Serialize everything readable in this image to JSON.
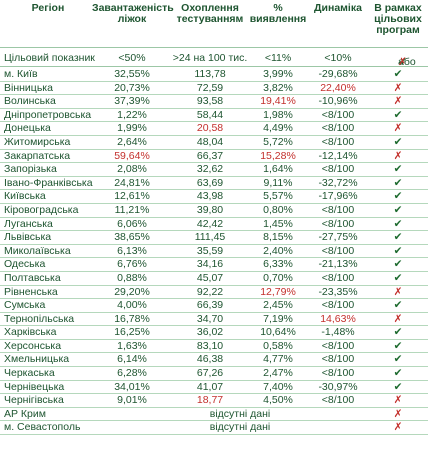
{
  "headers": {
    "region": "Регіон",
    "beds_line1": "Завантаженість",
    "beds_line2": "ліжок",
    "test_line1": "Охоплення",
    "test_line2": "тестуванням",
    "detect_line1": "%",
    "detect_line2": "виявлення",
    "dynamics": "Динаміка",
    "prog_line1": "В рамках",
    "prog_line2": "цільових",
    "prog_line3": "програм"
  },
  "target": {
    "label": "Цільовий показник",
    "beds": "<50%",
    "test": ">24 на 100 тис.",
    "detect": "<11%",
    "dyn": "<10%",
    "check": "✔",
    "or": "або",
    "cross": "✗"
  },
  "colors": {
    "text_green": "#1e5530",
    "red": "#c3302c",
    "check_green": "#1e6b2f",
    "line": "#b5d8bc"
  },
  "rows": [
    {
      "region": "м. Київ",
      "beds": "32,55%",
      "test": "113,78",
      "detect": "3,99%",
      "dyn": "-29,68%",
      "prog": "✔",
      "ok": true,
      "red": []
    },
    {
      "region": "Вінницька",
      "beds": "20,73%",
      "test": "72,59",
      "detect": "3,82%",
      "dyn": "22,40%",
      "prog": "✗",
      "ok": false,
      "red": [
        "dyn"
      ]
    },
    {
      "region": "Волинська",
      "beds": "37,39%",
      "test": "93,58",
      "detect": "19,41%",
      "dyn": "-10,96%",
      "prog": "✗",
      "ok": false,
      "red": [
        "detect"
      ]
    },
    {
      "region": "Дніпропетровська",
      "beds": "1,22%",
      "test": "58,44",
      "detect": "1,98%",
      "dyn": "<8/100",
      "prog": "✔",
      "ok": true,
      "red": []
    },
    {
      "region": "Донецька",
      "beds": "1,99%",
      "test": "20,58",
      "detect": "4,49%",
      "dyn": "<8/100",
      "prog": "✗",
      "ok": false,
      "red": [
        "test"
      ]
    },
    {
      "region": "Житомирська",
      "beds": "2,64%",
      "test": "48,04",
      "detect": "5,72%",
      "dyn": "<8/100",
      "prog": "✔",
      "ok": true,
      "red": []
    },
    {
      "region": "Закарпатська",
      "beds": "59,64%",
      "test": "66,37",
      "detect": "15,28%",
      "dyn": "-12,14%",
      "prog": "✗",
      "ok": false,
      "red": [
        "beds",
        "detect"
      ]
    },
    {
      "region": "Запорізька",
      "beds": "2,08%",
      "test": "32,62",
      "detect": "1,64%",
      "dyn": "<8/100",
      "prog": "✔",
      "ok": true,
      "red": []
    },
    {
      "region": "Івано-Франківська",
      "beds": "24,81%",
      "test": "63,69",
      "detect": "9,11%",
      "dyn": "-32,72%",
      "prog": "✔",
      "ok": true,
      "red": []
    },
    {
      "region": "Київська",
      "beds": "12,61%",
      "test": "43,98",
      "detect": "5,57%",
      "dyn": "-17,96%",
      "prog": "✔",
      "ok": true,
      "red": []
    },
    {
      "region": "Кіровоградська",
      "beds": "11,21%",
      "test": "39,80",
      "detect": "0,80%",
      "dyn": "<8/100",
      "prog": "✔",
      "ok": true,
      "red": []
    },
    {
      "region": "Луганська",
      "beds": "6,06%",
      "test": "42,42",
      "detect": "1,45%",
      "dyn": "<8/100",
      "prog": "✔",
      "ok": true,
      "red": []
    },
    {
      "region": "Львівська",
      "beds": "38,65%",
      "test": "111,45",
      "detect": "8,15%",
      "dyn": "-27,75%",
      "prog": "✔",
      "ok": true,
      "red": []
    },
    {
      "region": "Миколаївська",
      "beds": "6,13%",
      "test": "35,59",
      "detect": "2,40%",
      "dyn": "<8/100",
      "prog": "✔",
      "ok": true,
      "red": []
    },
    {
      "region": "Одеська",
      "beds": "6,76%",
      "test": "34,16",
      "detect": "6,33%",
      "dyn": "-21,13%",
      "prog": "✔",
      "ok": true,
      "red": []
    },
    {
      "region": "Полтавська",
      "beds": "0,88%",
      "test": "45,07",
      "detect": "0,70%",
      "dyn": "<8/100",
      "prog": "✔",
      "ok": true,
      "red": []
    },
    {
      "region": "Рівненська",
      "beds": "29,20%",
      "test": "92,22",
      "detect": "12,79%",
      "dyn": "-23,35%",
      "prog": "✗",
      "ok": false,
      "red": [
        "detect"
      ]
    },
    {
      "region": "Сумська",
      "beds": "4,00%",
      "test": "66,39",
      "detect": "2,45%",
      "dyn": "<8/100",
      "prog": "✔",
      "ok": true,
      "red": []
    },
    {
      "region": "Тернопільська",
      "beds": "16,78%",
      "test": "34,70",
      "detect": "7,19%",
      "dyn": "14,63%",
      "prog": "✗",
      "ok": false,
      "red": [
        "dyn"
      ]
    },
    {
      "region": "Харківська",
      "beds": "16,25%",
      "test": "36,02",
      "detect": "10,64%",
      "dyn": "-1,48%",
      "prog": "✔",
      "ok": true,
      "red": []
    },
    {
      "region": "Херсонська",
      "beds": "1,63%",
      "test": "83,10",
      "detect": "0,58%",
      "dyn": "<8/100",
      "prog": "✔",
      "ok": true,
      "red": []
    },
    {
      "region": "Хмельницька",
      "beds": "6,14%",
      "test": "46,38",
      "detect": "4,77%",
      "dyn": "<8/100",
      "prog": "✔",
      "ok": true,
      "red": []
    },
    {
      "region": "Черкаська",
      "beds": "6,28%",
      "test": "67,26",
      "detect": "2,47%",
      "dyn": "<8/100",
      "prog": "✔",
      "ok": true,
      "red": []
    },
    {
      "region": "Чернівецька",
      "beds": "34,01%",
      "test": "41,07",
      "detect": "7,40%",
      "dyn": "-30,97%",
      "prog": "✔",
      "ok": true,
      "red": []
    },
    {
      "region": "Чернігівська",
      "beds": "9,01%",
      "test": "18,77",
      "detect": "4,50%",
      "dyn": "<8/100",
      "prog": "✗",
      "ok": false,
      "red": [
        "test"
      ]
    },
    {
      "region": "АР Крим",
      "nodata": "відсутні дані",
      "prog": "✗",
      "ok": false,
      "red": []
    },
    {
      "region": "м. Севастополь",
      "nodata": "відсутні дані",
      "prog": "✗",
      "ok": false,
      "red": []
    }
  ]
}
